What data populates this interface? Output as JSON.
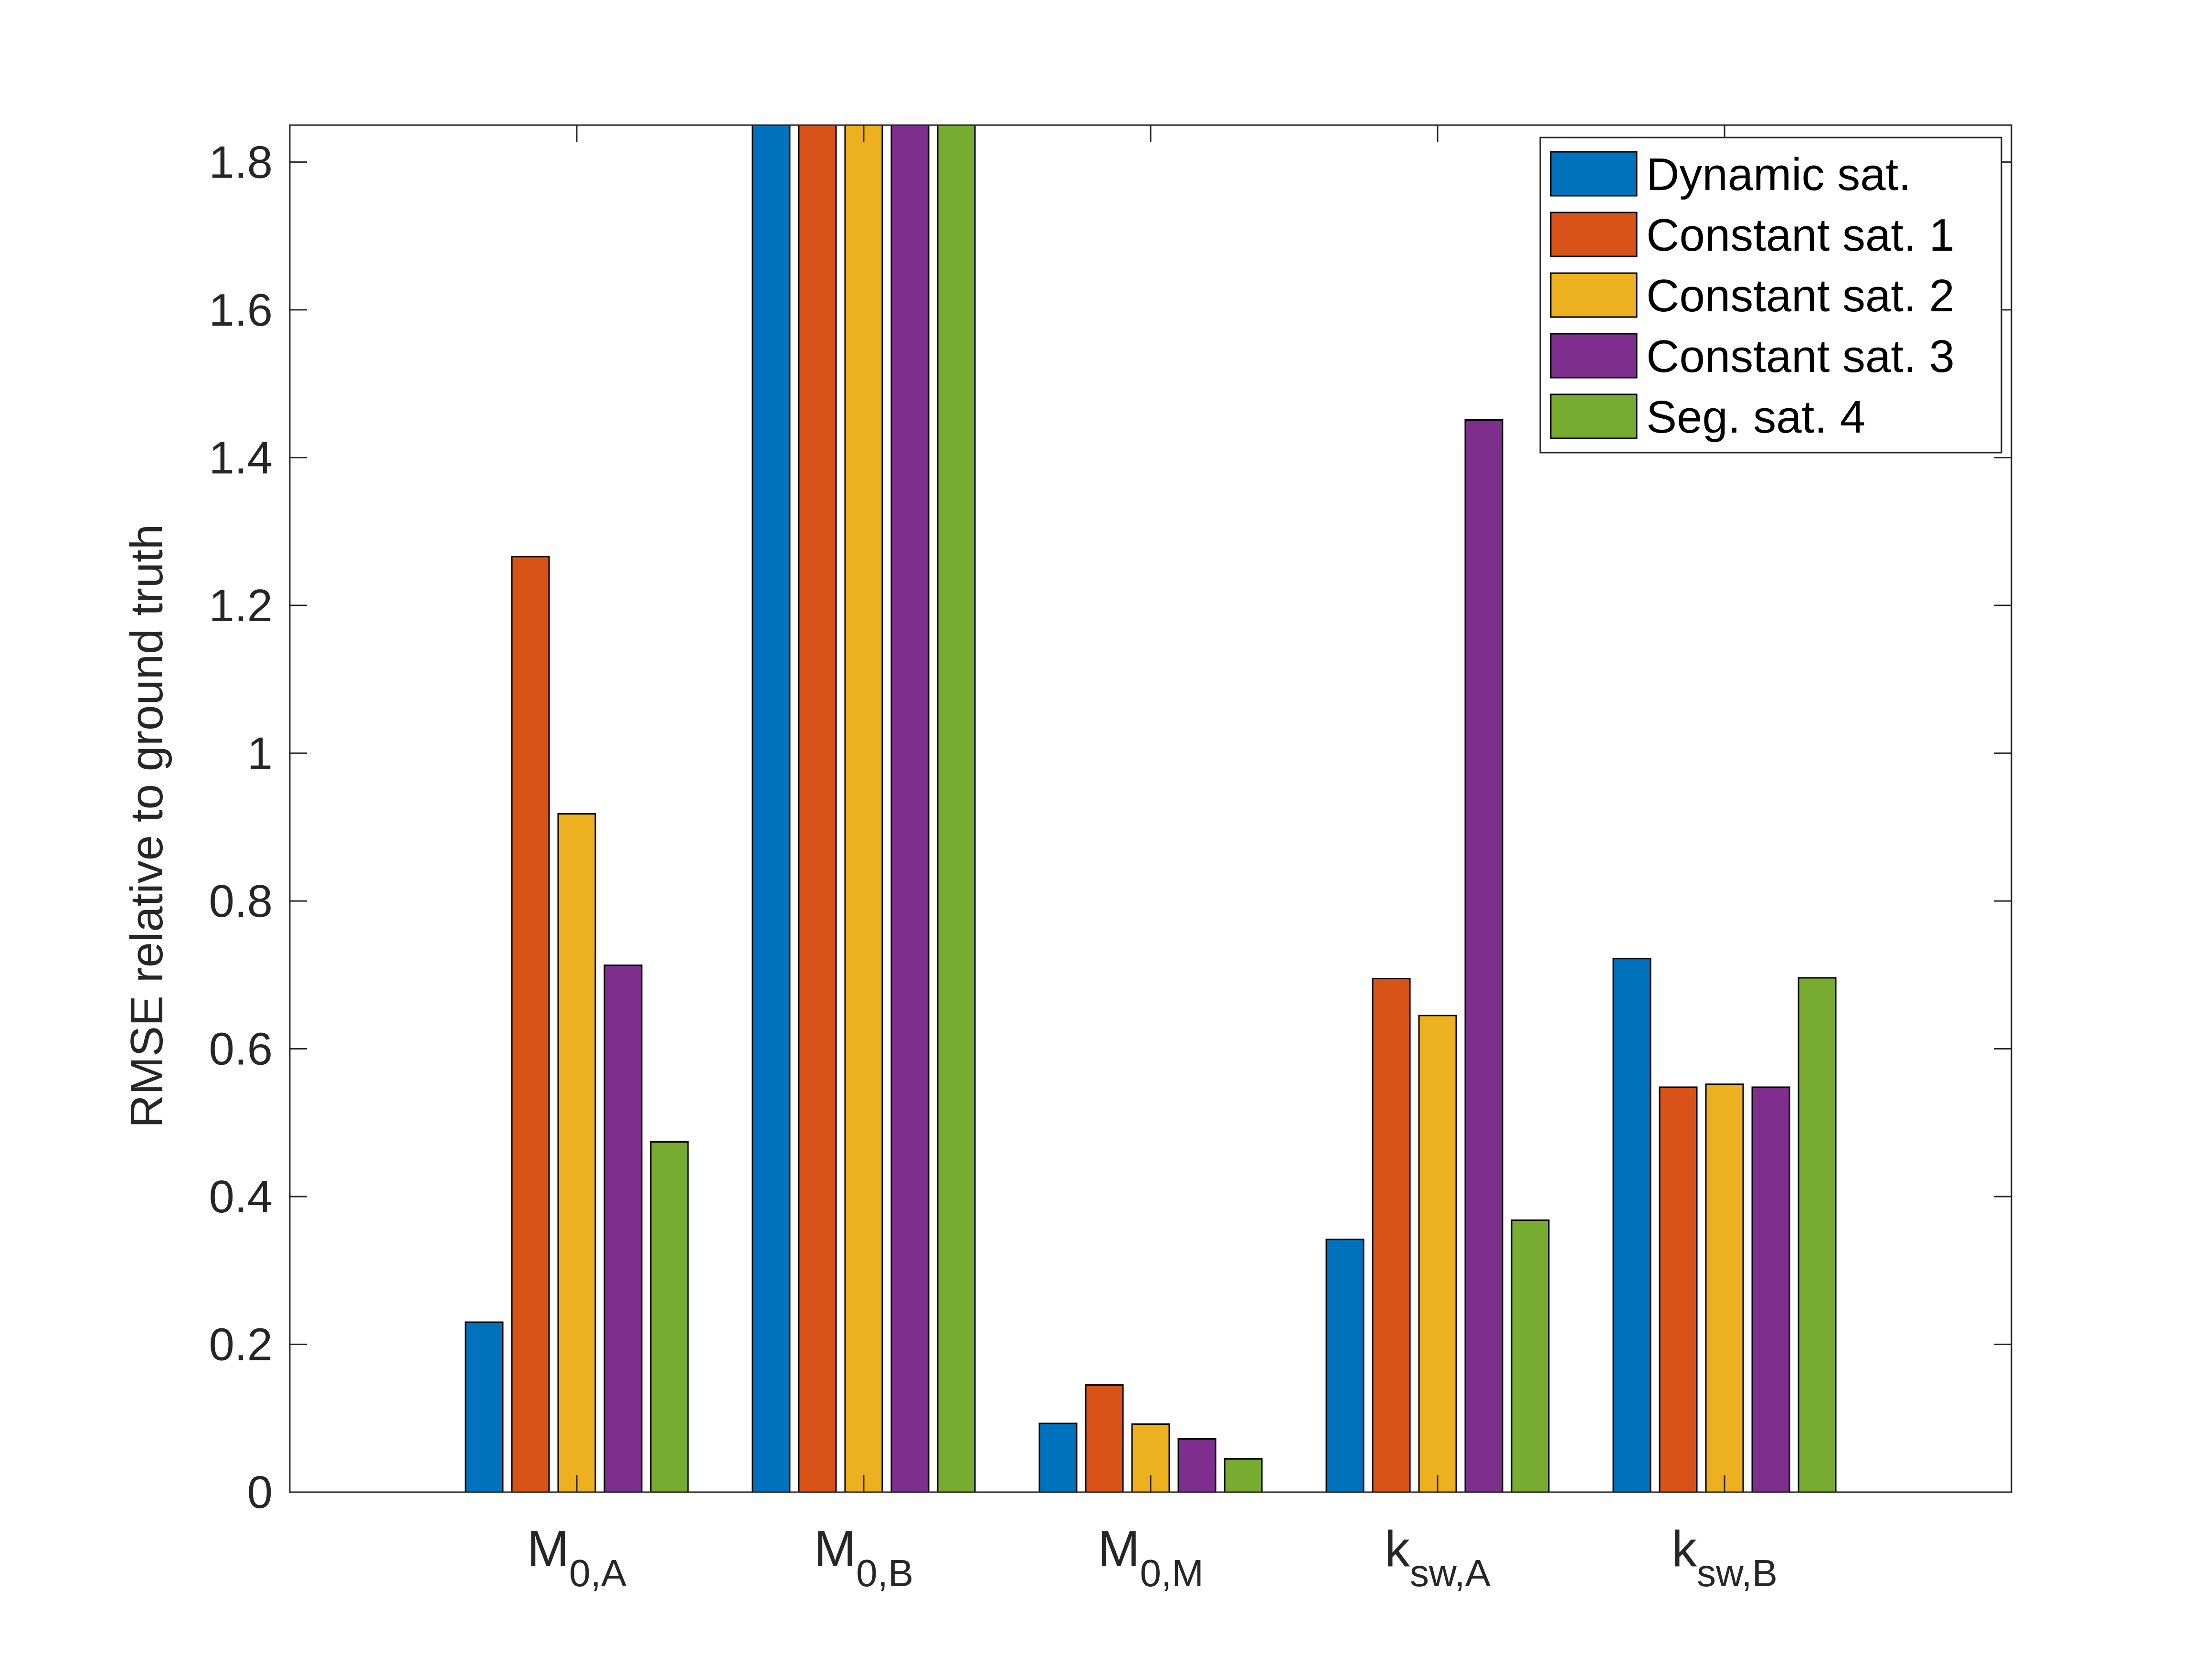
{
  "chart_data": {
    "type": "bar",
    "title": "",
    "xlabel": "",
    "ylabel": "RMSE relative to ground truth",
    "ylim": [
      0,
      1.85
    ],
    "yticks": [
      0,
      0.2,
      0.4,
      0.6,
      0.8,
      1,
      1.2,
      1.4,
      1.6,
      1.8
    ],
    "ytick_labels": [
      "0",
      "0.2",
      "0.4",
      "0.6",
      "0.8",
      "1",
      "1.2",
      "1.4",
      "1.6",
      "1.8"
    ],
    "grid": false,
    "legend_position": "top-right",
    "categories": [
      {
        "main": "M",
        "sub": "0,A"
      },
      {
        "main": "M",
        "sub": "0,B"
      },
      {
        "main": "M",
        "sub": "0,M"
      },
      {
        "main": "k",
        "sub": "sw,A"
      },
      {
        "main": "k",
        "sub": "sw,B"
      }
    ],
    "series": [
      {
        "name": "Dynamic sat.",
        "color": "#0072BD",
        "values": [
          0.23,
          1.85,
          0.093,
          0.342,
          0.722
        ]
      },
      {
        "name": "Constant sat. 1",
        "color": "#D95319",
        "values": [
          1.266,
          1.85,
          0.145,
          0.695,
          0.548
        ]
      },
      {
        "name": "Constant sat. 2",
        "color": "#EDB120",
        "values": [
          0.918,
          1.85,
          0.092,
          0.645,
          0.552
        ]
      },
      {
        "name": "Constant sat. 3",
        "color": "#7E2F8E",
        "values": [
          0.713,
          1.85,
          0.072,
          1.451,
          0.548
        ]
      },
      {
        "name": "Seg. sat. 4",
        "color": "#77AC30",
        "values": [
          0.474,
          1.85,
          0.045,
          0.368,
          0.696
        ]
      }
    ]
  }
}
